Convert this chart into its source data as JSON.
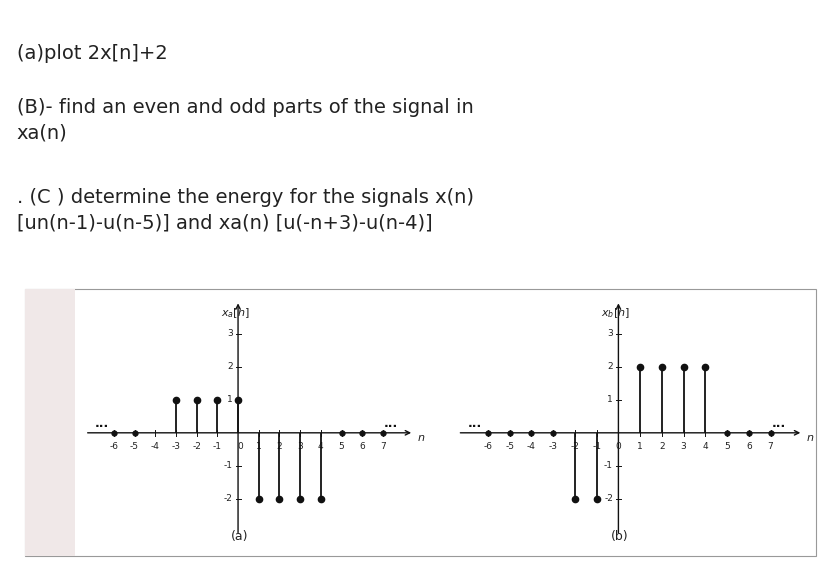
{
  "text_lines": [
    "(a)plot 2x[n]+2",
    "(B)- find an even and odd parts of the signal in\nxa(n)",
    ". (C ) determine the energy for the signals x(n)\n[un(n-1)-u(n-5)] and xa(n) [u(-n+3)-u(n-4)]"
  ],
  "plot_a": {
    "title": "x_a",
    "xlim": [
      -7.5,
      8.5
    ],
    "ylim": [
      -3.2,
      4.0
    ],
    "ytick_vals": [
      -2,
      -1,
      1,
      2,
      3
    ],
    "xtick_vals": [
      -6,
      -5,
      -4,
      -3,
      -2,
      -1,
      1,
      2,
      3,
      4,
      5,
      6,
      7
    ],
    "show_zero": true,
    "stems_n": [
      -3,
      -2,
      -1,
      0,
      1,
      2,
      3,
      4
    ],
    "stems_v": [
      1,
      1,
      1,
      1,
      -2,
      -2,
      -2,
      -2
    ],
    "zero_dots": [
      -6,
      -5,
      5,
      6,
      7
    ],
    "label": "(a)",
    "ellipsis_left_x": -6.8,
    "ellipsis_right_x": 6.8
  },
  "plot_b": {
    "title": "x_b",
    "xlim": [
      -7.5,
      8.5
    ],
    "ylim": [
      -3.2,
      4.0
    ],
    "ytick_vals": [
      -2,
      -1,
      1,
      2,
      3
    ],
    "xtick_vals": [
      -6,
      -5,
      -4,
      -3,
      -2,
      -1,
      0,
      1,
      2,
      3,
      4,
      5,
      6,
      7
    ],
    "show_zero": false,
    "stems_n": [
      -2,
      -1,
      1,
      2,
      3,
      4
    ],
    "stems_v": [
      -2,
      -2,
      2,
      2,
      2,
      2
    ],
    "zero_dots": [
      -6,
      -5,
      -4,
      -3,
      5,
      6,
      7
    ],
    "label": "(b)",
    "ellipsis_left_x": -6.8,
    "ellipsis_right_x": 6.8,
    "extra_ytick_labels": [
      -2,
      -1
    ]
  },
  "bg_color": "#ffffff",
  "box_bg_left": "#f0e8e8",
  "stem_color": "#111111",
  "axis_color": "#111111",
  "text_color": "#222222"
}
